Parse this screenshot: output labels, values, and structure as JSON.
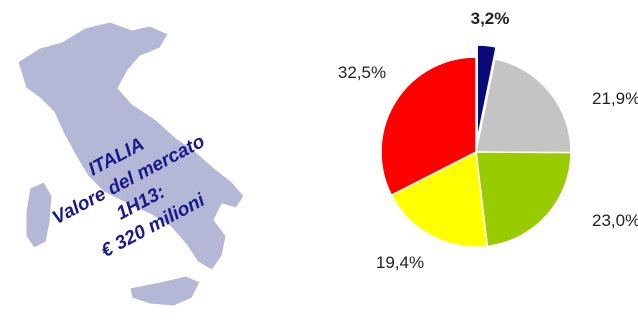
{
  "map": {
    "caption_lines": [
      "ITALIA",
      "Valore del mercato",
      "1H13:",
      "€ 320 milioni"
    ],
    "fill_color": "#b5b7d6"
  },
  "chart_data": {
    "type": "pie",
    "title": "",
    "slices": [
      {
        "label": "3,2%",
        "value": 3.2,
        "color": "#0a0a7a",
        "exploded": true,
        "bold": true
      },
      {
        "label": "21,9%",
        "value": 21.9,
        "color": "#c4c4c4",
        "exploded": false,
        "bold": false
      },
      {
        "label": "23,0%",
        "value": 23.0,
        "color": "#99cc00",
        "exploded": false,
        "bold": false
      },
      {
        "label": "19,4%",
        "value": 19.4,
        "color": "#ffff00",
        "exploded": false,
        "bold": false
      },
      {
        "label": "32,5%",
        "value": 32.5,
        "color": "#ff0000",
        "exploded": false,
        "bold": false
      }
    ]
  }
}
